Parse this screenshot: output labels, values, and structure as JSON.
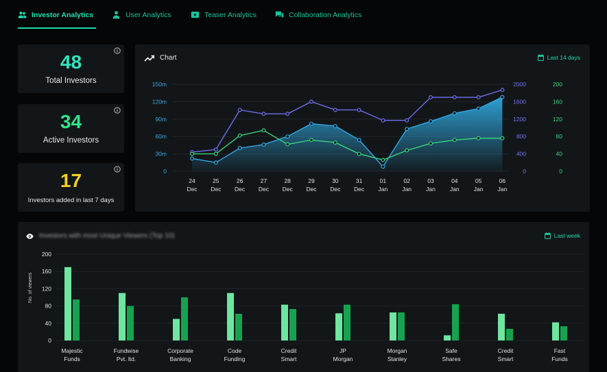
{
  "tabs": [
    {
      "label": "Investor Analytics",
      "active": true,
      "icon": "people-icon"
    },
    {
      "label": "User Analytics",
      "active": false,
      "icon": "person-icon"
    },
    {
      "label": "Teaser Analytics",
      "active": false,
      "icon": "video-icon"
    },
    {
      "label": "Collaboration Analytics",
      "active": false,
      "icon": "chat-icon"
    }
  ],
  "stats": [
    {
      "value": "48",
      "label": "Total Investors",
      "color": "#2ee6bd"
    },
    {
      "value": "34",
      "label": "Active Investors",
      "color": "#2ee68a"
    },
    {
      "value": "17",
      "label": "Investors added in last 7 days",
      "color": "#f2cf1d"
    }
  ],
  "line_panel": {
    "title": "Chart",
    "period": "Last 14 days"
  },
  "bar_panel": {
    "title": "Investors with most Unique Viewers (Top 10)",
    "period": "Last week",
    "ylabel": "No. of viewers"
  },
  "colors": {
    "accent": "#1fd8ac",
    "blue_series": "#31a8e6",
    "purple_series": "#6f6ff0",
    "green_series": "#38d47f",
    "bar_light": "#6ee6a0",
    "bar_dark": "#17a24f"
  },
  "chart_data": [
    {
      "type": "line",
      "categories": [
        "24 Dec",
        "25 Dec",
        "26 Dec",
        "27 Dec",
        "28 Dec",
        "29 Dec",
        "30 Dec",
        "31 Dec",
        "01 Jan",
        "02 Jan",
        "03 Jan",
        "04 Jan",
        "05 Jan",
        "06 Jan"
      ],
      "left_axis": {
        "ticks": [
          "0",
          "30m",
          "60m",
          "90m",
          "120m",
          "150m"
        ],
        "ylim": [
          0,
          150
        ]
      },
      "right_axis_1": {
        "ticks": [
          "0",
          "400",
          "800",
          "1200",
          "1600",
          "2000"
        ],
        "ylim": [
          0,
          2000
        ]
      },
      "right_axis_2": {
        "ticks": [
          "0",
          "40",
          "80",
          "120",
          "160",
          "200"
        ],
        "ylim": [
          0,
          200
        ]
      },
      "series": [
        {
          "axis": "left",
          "area": true,
          "values": [
            22,
            15,
            40,
            46,
            60,
            82,
            78,
            54,
            8,
            73,
            86,
            100,
            108,
            128
          ]
        },
        {
          "axis": "right_1",
          "values": [
            440,
            500,
            1410,
            1320,
            1320,
            1600,
            1410,
            1410,
            1170,
            1170,
            1700,
            1700,
            1700,
            1870
          ]
        },
        {
          "axis": "right_2",
          "values": [
            40,
            40,
            82,
            94,
            62,
            72,
            66,
            40,
            26,
            48,
            64,
            72,
            76,
            76
          ]
        }
      ],
      "grid": true
    },
    {
      "type": "bar",
      "ylabel": "No. of viewers",
      "yticks": [
        "0",
        "40",
        "80",
        "120",
        "160",
        "200"
      ],
      "ylim": [
        0,
        200
      ],
      "categories": [
        [
          "Majestic",
          "Funds"
        ],
        [
          "Fundwise",
          "Pvt. ltd."
        ],
        [
          "Corporate",
          "Banking"
        ],
        [
          "Code",
          "Funding"
        ],
        [
          "Credit",
          "Smart"
        ],
        [
          "JP",
          "Morgan"
        ],
        [
          "Morgan",
          "Stanley"
        ],
        [
          "Safe",
          "Shares"
        ],
        [
          "Credit",
          "Smart"
        ],
        [
          "Fast",
          "Funds"
        ]
      ],
      "series": [
        {
          "values": [
            170,
            110,
            50,
            110,
            83,
            63,
            65,
            12,
            62,
            42
          ]
        },
        {
          "values": [
            95,
            80,
            100,
            62,
            73,
            83,
            65,
            84,
            27,
            33
          ]
        }
      ],
      "grid": true
    }
  ]
}
